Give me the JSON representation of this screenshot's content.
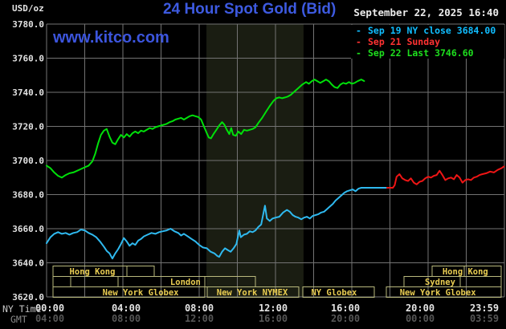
{
  "header": {
    "unit_label": "USD/oz",
    "datetime": "September 22, 2025 16:40",
    "watermark": "www.kitco.com"
  },
  "legend": [
    {
      "label": "Sep 19 NY close 3684.00",
      "color": "#10bdff"
    },
    {
      "label": "Sep 21 Sunday",
      "color": "#ff3232"
    },
    {
      "label": "Sep 22 Last 3746.60",
      "color": "#1ee01e"
    }
  ],
  "y_axis": {
    "ticks": [
      "3780.0",
      "3760.0",
      "3740.0",
      "3720.0",
      "3700.0",
      "3680.0",
      "3660.0",
      "3640.0",
      "3620.0"
    ],
    "color": "#e2e2e2"
  },
  "x_axis": {
    "ny_label": "NY Time",
    "gmt_label": "GMT",
    "ny_ticks": [
      "00:00",
      "04:00",
      "08:00",
      "12:00",
      "16:00",
      "20:00",
      "23:59"
    ],
    "gmt_ticks": [
      "04:00",
      "08:00",
      "12:00",
      "16:00",
      "20:00",
      "00:00",
      "03:59"
    ],
    "tick_x": [
      62,
      157,
      248,
      340,
      430,
      523,
      603
    ],
    "ny_color": "#e4e4e4",
    "gmt_color": "#565656"
  },
  "sessions": {
    "border_color": "#b9b97d",
    "text_color": "#e9cd52",
    "rows": [
      {
        "row": 0,
        "t1": 0.34,
        "t2": 5.64,
        "label": "Hong Kong",
        "label_t": 2.4,
        "dividers": [
          4.21
        ]
      },
      {
        "row": 0,
        "t1": 20.21,
        "t2": 23.83,
        "label": "Hong Kong",
        "label_t": 21.95,
        "dividers": [
          21.89
        ]
      },
      {
        "row": 1,
        "t1": 0.34,
        "t2": 1.26,
        "label": "",
        "label_t": 0,
        "dividers": []
      },
      {
        "row": 1,
        "t1": 1.26,
        "t2": 3.75,
        "label": "",
        "label_t": 0,
        "dividers": []
      },
      {
        "row": 1,
        "t1": 3.75,
        "t2": 10.95,
        "label": "London",
        "label_t": 7.28,
        "dividers": [
          8.29
        ]
      },
      {
        "row": 1,
        "t1": 18.74,
        "t2": 23.83,
        "label": "Sydney",
        "label_t": 20.63,
        "dividers": [
          21.68
        ]
      },
      {
        "row": 2,
        "t1": 0.34,
        "t2": 8.29,
        "label": "New York Globex",
        "label_t": 4.93,
        "dividers": []
      },
      {
        "row": 2,
        "t1": 8.42,
        "t2": 13.22,
        "label": "New York NYMEX",
        "label_t": 10.78,
        "dividers": []
      },
      {
        "row": 2,
        "t1": 13.43,
        "t2": 17.18,
        "label": "NY Globex",
        "label_t": 15.07,
        "dividers": []
      },
      {
        "row": 2,
        "t1": 17.81,
        "t2": 23.83,
        "label": "New York Globex",
        "label_t": 20.51,
        "dividers": []
      }
    ]
  },
  "chart_data": {
    "type": "line",
    "title": "24 Hour Spot Gold (Bid)",
    "xlabel": "NY Time (top) / GMT (bottom)",
    "ylabel": "USD/oz",
    "ylim": [
      3620,
      3780
    ],
    "xlim_hours": [
      0,
      24
    ],
    "y_grid_step": 20,
    "x_grid_step_hours": 2,
    "grid_color": "#737373",
    "nymex_shade_hours": [
      8.38,
      13.47
    ],
    "nymex_shade_color": "#1a1d12",
    "series": [
      {
        "name": "Sep 19 NY close",
        "color": "#2fb9ef",
        "close": 3684.0,
        "points": [
          [
            0,
            3651.5
          ],
          [
            0.2,
            3655
          ],
          [
            0.4,
            3657
          ],
          [
            0.6,
            3658
          ],
          [
            0.8,
            3657
          ],
          [
            1.0,
            3657.5
          ],
          [
            1.2,
            3656.5
          ],
          [
            1.4,
            3657.5
          ],
          [
            1.6,
            3658
          ],
          [
            1.8,
            3659.5
          ],
          [
            2.0,
            3659
          ],
          [
            2.2,
            3657.5
          ],
          [
            2.4,
            3656.5
          ],
          [
            2.6,
            3655
          ],
          [
            2.8,
            3652.5
          ],
          [
            3.0,
            3649.5
          ],
          [
            3.15,
            3647
          ],
          [
            3.3,
            3645.5
          ],
          [
            3.45,
            3642.5
          ],
          [
            3.6,
            3645.5
          ],
          [
            3.75,
            3648
          ],
          [
            3.9,
            3651
          ],
          [
            4.05,
            3654.5
          ],
          [
            4.2,
            3652.5
          ],
          [
            4.35,
            3650
          ],
          [
            4.5,
            3651.5
          ],
          [
            4.65,
            3650.5
          ],
          [
            4.8,
            3653
          ],
          [
            4.95,
            3654
          ],
          [
            5.1,
            3655.5
          ],
          [
            5.3,
            3656.5
          ],
          [
            5.5,
            3657.5
          ],
          [
            5.7,
            3657
          ],
          [
            5.9,
            3658
          ],
          [
            6.1,
            3658.5
          ],
          [
            6.3,
            3659
          ],
          [
            6.5,
            3660
          ],
          [
            6.7,
            3658.5
          ],
          [
            6.9,
            3657.5
          ],
          [
            7.05,
            3656
          ],
          [
            7.2,
            3657
          ],
          [
            7.4,
            3655.5
          ],
          [
            7.6,
            3654
          ],
          [
            7.8,
            3652.5
          ],
          [
            8.0,
            3650.5
          ],
          [
            8.2,
            3649
          ],
          [
            8.4,
            3648.5
          ],
          [
            8.6,
            3646.5
          ],
          [
            8.8,
            3645.5
          ],
          [
            8.95,
            3644
          ],
          [
            9.05,
            3643.5
          ],
          [
            9.2,
            3646.5
          ],
          [
            9.35,
            3648.5
          ],
          [
            9.5,
            3647.5
          ],
          [
            9.65,
            3646.5
          ],
          [
            9.8,
            3648.5
          ],
          [
            9.95,
            3651
          ],
          [
            10.1,
            3659
          ],
          [
            10.18,
            3655
          ],
          [
            10.35,
            3656.5
          ],
          [
            10.5,
            3657
          ],
          [
            10.65,
            3658.5
          ],
          [
            10.8,
            3658
          ],
          [
            10.95,
            3659
          ],
          [
            11.1,
            3661
          ],
          [
            11.25,
            3662.5
          ],
          [
            11.45,
            3673.5
          ],
          [
            11.55,
            3666
          ],
          [
            11.7,
            3664.5
          ],
          [
            11.85,
            3666
          ],
          [
            12.0,
            3666.5
          ],
          [
            12.2,
            3667
          ],
          [
            12.4,
            3669.5
          ],
          [
            12.6,
            3671
          ],
          [
            12.75,
            3670
          ],
          [
            12.9,
            3668
          ],
          [
            13.05,
            3667
          ],
          [
            13.2,
            3666.5
          ],
          [
            13.35,
            3665.5
          ],
          [
            13.5,
            3666.5
          ],
          [
            13.65,
            3667
          ],
          [
            13.8,
            3666
          ],
          [
            13.95,
            3667.5
          ],
          [
            14.1,
            3668
          ],
          [
            14.25,
            3668.5
          ],
          [
            14.4,
            3669.5
          ],
          [
            14.55,
            3670
          ],
          [
            14.7,
            3671.5
          ],
          [
            14.85,
            3673
          ],
          [
            15.0,
            3674.5
          ],
          [
            15.15,
            3676.5
          ],
          [
            15.3,
            3678
          ],
          [
            15.45,
            3679.5
          ],
          [
            15.6,
            3681
          ],
          [
            15.75,
            3682
          ],
          [
            15.9,
            3682.5
          ],
          [
            16.05,
            3683
          ],
          [
            16.2,
            3682
          ],
          [
            16.35,
            3683.5
          ],
          [
            16.5,
            3684
          ],
          [
            17.85,
            3684
          ]
        ]
      },
      {
        "name": "Sep 21 Sunday",
        "color": "#ef1515",
        "points": [
          [
            17.85,
            3684
          ],
          [
            18.15,
            3684
          ],
          [
            18.25,
            3685.5
          ],
          [
            18.35,
            3690.5
          ],
          [
            18.5,
            3692
          ],
          [
            18.65,
            3689.5
          ],
          [
            18.8,
            3688.5
          ],
          [
            18.95,
            3688
          ],
          [
            19.1,
            3689.5
          ],
          [
            19.25,
            3687
          ],
          [
            19.4,
            3686
          ],
          [
            19.55,
            3687.5
          ],
          [
            19.7,
            3688
          ],
          [
            19.85,
            3689.5
          ],
          [
            20.0,
            3690.5
          ],
          [
            20.15,
            3690
          ],
          [
            20.3,
            3691
          ],
          [
            20.45,
            3691.5
          ],
          [
            20.6,
            3694
          ],
          [
            20.75,
            3691.5
          ],
          [
            20.9,
            3688.5
          ],
          [
            21.05,
            3689.5
          ],
          [
            21.2,
            3690
          ],
          [
            21.35,
            3689
          ],
          [
            21.5,
            3691.5
          ],
          [
            21.65,
            3690
          ],
          [
            21.8,
            3687
          ],
          [
            21.95,
            3688.5
          ],
          [
            22.1,
            3689
          ],
          [
            22.25,
            3688.5
          ],
          [
            22.4,
            3690
          ],
          [
            22.55,
            3690.5
          ],
          [
            22.7,
            3691.5
          ],
          [
            22.85,
            3692
          ],
          [
            23.05,
            3692.5
          ],
          [
            23.25,
            3693.5
          ],
          [
            23.45,
            3693
          ],
          [
            23.65,
            3694.5
          ],
          [
            23.85,
            3695.5
          ],
          [
            23.98,
            3696.5
          ]
        ]
      },
      {
        "name": "Sep 22 Last",
        "color": "#00e00a",
        "last": 3746.6,
        "points": [
          [
            0,
            3697
          ],
          [
            0.2,
            3695.5
          ],
          [
            0.4,
            3693
          ],
          [
            0.6,
            3691
          ],
          [
            0.8,
            3690
          ],
          [
            1.0,
            3691.5
          ],
          [
            1.2,
            3692.5
          ],
          [
            1.4,
            3693
          ],
          [
            1.6,
            3694
          ],
          [
            1.8,
            3695
          ],
          [
            2.0,
            3696
          ],
          [
            2.2,
            3697
          ],
          [
            2.4,
            3699.5
          ],
          [
            2.55,
            3704
          ],
          [
            2.7,
            3710
          ],
          [
            2.85,
            3715
          ],
          [
            3.0,
            3717.5
          ],
          [
            3.15,
            3718.5
          ],
          [
            3.3,
            3714
          ],
          [
            3.45,
            3710.5
          ],
          [
            3.6,
            3709.5
          ],
          [
            3.75,
            3712.5
          ],
          [
            3.9,
            3715
          ],
          [
            4.05,
            3713.5
          ],
          [
            4.2,
            3715.5
          ],
          [
            4.35,
            3714
          ],
          [
            4.5,
            3716
          ],
          [
            4.65,
            3717
          ],
          [
            4.8,
            3716
          ],
          [
            4.95,
            3717.5
          ],
          [
            5.1,
            3717
          ],
          [
            5.25,
            3718
          ],
          [
            5.4,
            3719
          ],
          [
            5.55,
            3718.5
          ],
          [
            5.7,
            3719.5
          ],
          [
            5.85,
            3720
          ],
          [
            6.0,
            3720.5
          ],
          [
            6.15,
            3721
          ],
          [
            6.3,
            3721.5
          ],
          [
            6.45,
            3722.5
          ],
          [
            6.6,
            3723
          ],
          [
            6.75,
            3724
          ],
          [
            6.9,
            3724.5
          ],
          [
            7.05,
            3725
          ],
          [
            7.2,
            3724
          ],
          [
            7.35,
            3725
          ],
          [
            7.5,
            3726
          ],
          [
            7.65,
            3726.5
          ],
          [
            7.8,
            3726
          ],
          [
            7.95,
            3725.5
          ],
          [
            8.1,
            3724
          ],
          [
            8.25,
            3720
          ],
          [
            8.4,
            3716
          ],
          [
            8.5,
            3713.5
          ],
          [
            8.62,
            3713
          ],
          [
            8.75,
            3715.5
          ],
          [
            8.9,
            3718
          ],
          [
            9.05,
            3720.5
          ],
          [
            9.2,
            3722.5
          ],
          [
            9.32,
            3721
          ],
          [
            9.45,
            3718
          ],
          [
            9.58,
            3715.5
          ],
          [
            9.68,
            3719
          ],
          [
            9.78,
            3715
          ],
          [
            9.92,
            3714.5
          ],
          [
            10.05,
            3717
          ],
          [
            10.2,
            3715.5
          ],
          [
            10.35,
            3718
          ],
          [
            10.5,
            3717.5
          ],
          [
            10.65,
            3718
          ],
          [
            10.8,
            3718.5
          ],
          [
            10.95,
            3719.5
          ],
          [
            11.1,
            3722
          ],
          [
            11.3,
            3725
          ],
          [
            11.5,
            3728.5
          ],
          [
            11.7,
            3732
          ],
          [
            11.9,
            3735
          ],
          [
            12.05,
            3736.5
          ],
          [
            12.2,
            3737
          ],
          [
            12.35,
            3736.5
          ],
          [
            12.5,
            3737
          ],
          [
            12.65,
            3737.5
          ],
          [
            12.8,
            3738.5
          ],
          [
            13.0,
            3740.5
          ],
          [
            13.2,
            3742.5
          ],
          [
            13.4,
            3744.5
          ],
          [
            13.6,
            3746
          ],
          [
            13.75,
            3745
          ],
          [
            13.9,
            3746.5
          ],
          [
            14.05,
            3747.5
          ],
          [
            14.2,
            3746.5
          ],
          [
            14.35,
            3745.5
          ],
          [
            14.5,
            3746.5
          ],
          [
            14.65,
            3747.5
          ],
          [
            14.8,
            3746.5
          ],
          [
            14.95,
            3744.5
          ],
          [
            15.1,
            3743
          ],
          [
            15.25,
            3742.5
          ],
          [
            15.4,
            3744.5
          ],
          [
            15.55,
            3745.5
          ],
          [
            15.7,
            3745
          ],
          [
            15.85,
            3746
          ],
          [
            16.0,
            3745
          ],
          [
            16.15,
            3745.5
          ],
          [
            16.3,
            3746.5
          ],
          [
            16.5,
            3747.5
          ],
          [
            16.65,
            3746.6
          ]
        ]
      }
    ]
  }
}
